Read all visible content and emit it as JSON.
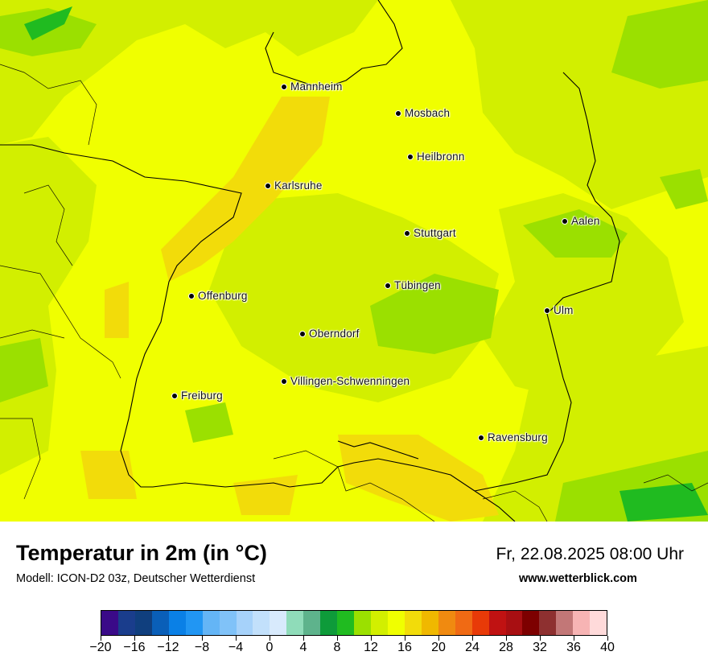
{
  "map": {
    "title": "Temperatur in 2m (in °C)",
    "model": "Modell: ICON-D2 03z, Deutscher Wetterdienst",
    "datetime": "Fr, 22.08.2025 08:00 Uhr",
    "website": "www.wetterblick.com",
    "cities": [
      {
        "name": "Mannheim"
      },
      {
        "name": "Mosbach"
      },
      {
        "name": "Heilbronn"
      },
      {
        "name": "Karlsruhe"
      },
      {
        "name": "Aalen"
      },
      {
        "name": "Stuttgart"
      },
      {
        "name": "Tübingen"
      },
      {
        "name": "Offenburg"
      },
      {
        "name": "Ulm"
      },
      {
        "name": "Oberndorf"
      },
      {
        "name": "Villingen-Schwenningen"
      },
      {
        "name": "Freiburg"
      },
      {
        "name": "Ravensburg"
      }
    ]
  },
  "legend": {
    "colors": [
      "#3a0a88",
      "#1a3d8c",
      "#103f7e",
      "#0a5fb8",
      "#0a80e6",
      "#2196f3",
      "#64b5f6",
      "#80c2f8",
      "#a6d2fa",
      "#c2e0fb",
      "#d8eafc",
      "#8fdcb9",
      "#5eb38c",
      "#0e9b3a",
      "#20bb20",
      "#9be000",
      "#d2ef00",
      "#f0ff00",
      "#f2dc0a",
      "#f0b800",
      "#f08a10",
      "#f06a14",
      "#e83a08",
      "#c01212",
      "#a80f12",
      "#7d0000",
      "#8e3030",
      "#c27777",
      "#f7b4b4",
      "#ffdada"
    ],
    "ticks": [
      "−20",
      "−16",
      "−12",
      "−8",
      "−4",
      "0",
      "4",
      "8",
      "12",
      "16",
      "20",
      "24",
      "28",
      "32",
      "36",
      "40"
    ],
    "range": [
      -20,
      40
    ]
  }
}
